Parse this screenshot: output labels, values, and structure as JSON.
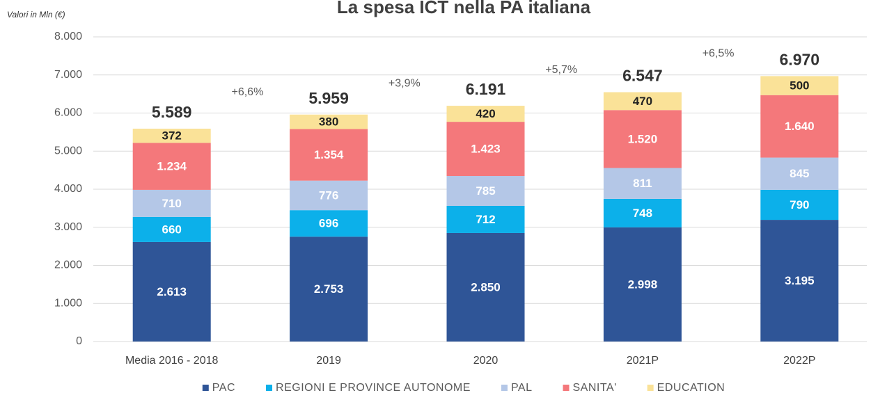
{
  "chart_data": {
    "type": "stacked_bar",
    "title": "La spesa ICT nella PA italiana",
    "ylabel": "Valori in Mln (€)",
    "categories": [
      "Media 2016 - 2018",
      "2019",
      "2020",
      "2021P",
      "2022P"
    ],
    "series": [
      {
        "name": "PAC",
        "color": "#2f5597",
        "label_color": "#ffffff",
        "values": [
          2613,
          2753,
          2850,
          2998,
          3195
        ],
        "value_labels": [
          "2.613",
          "2.753",
          "2.850",
          "2.998",
          "3.195"
        ]
      },
      {
        "name": "REGIONI E PROVINCE AUTONOME",
        "color": "#0cb0ea",
        "label_color": "#ffffff",
        "values": [
          660,
          696,
          712,
          748,
          790
        ]
      },
      {
        "name": "PAL",
        "color": "#b4c7e7",
        "label_color": "#ffffff",
        "values": [
          710,
          776,
          785,
          811,
          845
        ]
      },
      {
        "name": "SANITA'",
        "color": "#f4787b",
        "label_color": "#ffffff",
        "values": [
          1234,
          1354,
          1423,
          1520,
          1640
        ],
        "value_labels": [
          "1.234",
          "1.354",
          "1.423",
          "1.520",
          "1.640"
        ]
      },
      {
        "name": "EDUCATION",
        "color": "#fae298",
        "label_color": "#222222",
        "values": [
          372,
          380,
          420,
          470,
          500
        ]
      }
    ],
    "totals": {
      "values": [
        5589,
        5959,
        6191,
        6547,
        6970
      ],
      "value_labels": [
        "5.589",
        "5.959",
        "6.191",
        "6.547",
        "6.970"
      ]
    },
    "growth_labels": [
      "+6,6%",
      "+3,9%",
      "+5,7%",
      "+6,5%"
    ],
    "ylim": [
      0,
      8000
    ],
    "yticks": [
      0,
      {
        "value": 1000,
        "label": "1.000"
      },
      {
        "value": 2000,
        "label": "2.000"
      },
      {
        "value": 3000,
        "label": "3.000"
      },
      {
        "value": 4000,
        "label": "4.000"
      },
      {
        "value": 5000,
        "label": "5.000"
      },
      {
        "value": 6000,
        "label": "6.000"
      },
      {
        "value": 7000,
        "label": "7.000"
      },
      {
        "value": 8000,
        "label": "8.000"
      }
    ],
    "grid": true,
    "legend": "bottom"
  }
}
